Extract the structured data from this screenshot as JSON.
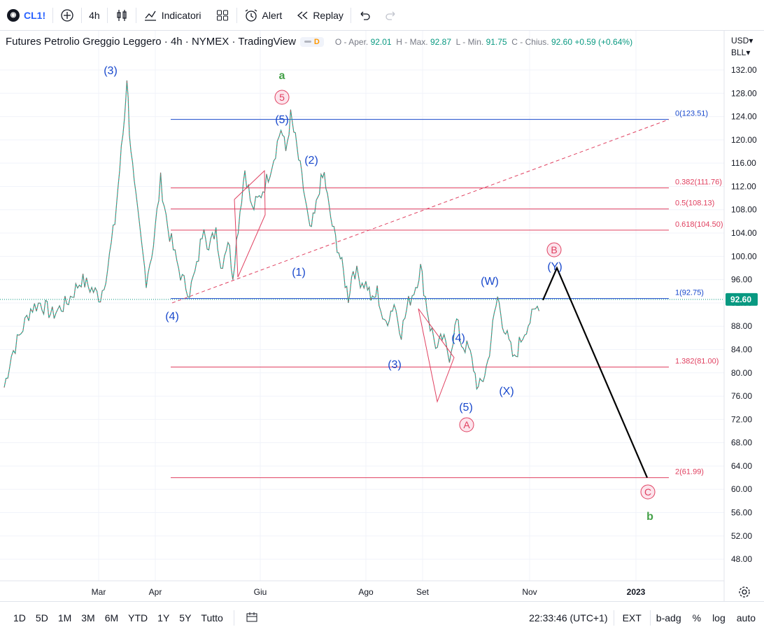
{
  "topbar": {
    "symbol": "CL1!",
    "interval": "4h",
    "indicators_label": "Indicatori",
    "alert_label": "Alert",
    "replay_label": "Replay"
  },
  "legend": {
    "title": "Futures Petrolio Greggio Leggero · 4h · NYMEX · TradingView",
    "d_badge": "D",
    "o_label": "O - Aper.",
    "o_value": "92.01",
    "h_label": "H - Max.",
    "h_value": "92.87",
    "l_label": "L - Min.",
    "l_value": "91.75",
    "c_label": "C - Chius.",
    "c_value": "92.60",
    "change": "+0.59 (+0.64%)"
  },
  "price_scale": {
    "currency": "USD",
    "unit": "BLL",
    "last_price": "92.60"
  },
  "chart_data": {
    "type": "line",
    "ylim": [
      44,
      136
    ],
    "y_ticks": [
      "132.00",
      "128.00",
      "124.00",
      "120.00",
      "116.00",
      "112.00",
      "108.00",
      "104.00",
      "100.00",
      "96.00",
      "92.00",
      "88.00",
      "84.00",
      "80.00",
      "76.00",
      "72.00",
      "68.00",
      "64.00",
      "60.00",
      "56.00",
      "52.00",
      "48.00"
    ],
    "x_ticks": [
      "Mar",
      "Apr",
      "Giu",
      "Ago",
      "Set",
      "Nov",
      "2023"
    ],
    "series": [
      {
        "values": [
          [
            0,
            77.5
          ],
          [
            6,
            83
          ],
          [
            14,
            87
          ],
          [
            22,
            91
          ],
          [
            30,
            92
          ],
          [
            40,
            90
          ],
          [
            52,
            92
          ],
          [
            64,
            96
          ],
          [
            80,
            93
          ],
          [
            86,
            98
          ],
          [
            92,
            106
          ],
          [
            96,
            115
          ],
          [
            100,
            124
          ],
          [
            102,
            131
          ],
          [
            104,
            122
          ],
          [
            108,
            112
          ],
          [
            114,
            102
          ],
          [
            118,
            96
          ],
          [
            124,
            102
          ],
          [
            130,
            113
          ],
          [
            136,
            105
          ],
          [
            142,
            100
          ],
          [
            148,
            96
          ],
          [
            154,
            94
          ],
          [
            160,
            98
          ],
          [
            166,
            106
          ],
          [
            170,
            101
          ],
          [
            176,
            105
          ],
          [
            180,
            98
          ],
          [
            186,
            103
          ],
          [
            190,
            97
          ],
          [
            196,
            108
          ],
          [
            200,
            115
          ],
          [
            206,
            108
          ],
          [
            212,
            110
          ],
          [
            218,
            113
          ],
          [
            224,
            117
          ],
          [
            230,
            122
          ],
          [
            234,
            118
          ],
          [
            238,
            124
          ],
          [
            242,
            120
          ],
          [
            246,
            115
          ],
          [
            250,
            110
          ],
          [
            254,
            104
          ],
          [
            258,
            107
          ],
          [
            262,
            112
          ],
          [
            266,
            114
          ],
          [
            270,
            108
          ],
          [
            274,
            104
          ],
          [
            278,
            101
          ],
          [
            282,
            97
          ],
          [
            286,
            93
          ],
          [
            290,
            98
          ],
          [
            296,
            96
          ],
          [
            302,
            95
          ],
          [
            306,
            92
          ],
          [
            310,
            94
          ],
          [
            316,
            88
          ],
          [
            320,
            90
          ],
          [
            324,
            92
          ],
          [
            330,
            87
          ],
          [
            336,
            92
          ],
          [
            342,
            95
          ],
          [
            346,
            98
          ],
          [
            350,
            93
          ],
          [
            354,
            88
          ],
          [
            360,
            84
          ],
          [
            364,
            86
          ],
          [
            370,
            83
          ],
          [
            376,
            89
          ],
          [
            380,
            85
          ],
          [
            386,
            84
          ],
          [
            390,
            81
          ],
          [
            394,
            77
          ],
          [
            398,
            79
          ],
          [
            402,
            82
          ],
          [
            406,
            88
          ],
          [
            410,
            93
          ],
          [
            414,
            89
          ],
          [
            418,
            86
          ],
          [
            424,
            82
          ],
          [
            428,
            85
          ],
          [
            434,
            88
          ],
          [
            440,
            90
          ],
          [
            446,
            92.6
          ]
        ]
      }
    ],
    "wave_labels": [
      "(3)",
      "a",
      "5",
      "(5)",
      "(2)",
      "(1)",
      "(4)",
      "(W)",
      "(4)",
      "(3)",
      "(5)",
      "A",
      "(X)",
      "B",
      "(Y)",
      "C",
      "b"
    ],
    "fib_levels": [
      {
        "label": "0(123.51)",
        "value": 123.51
      },
      {
        "label": "0.382(111.76)",
        "value": 111.76
      },
      {
        "label": "0.5(108.13)",
        "value": 108.13
      },
      {
        "label": "0.618(104.50)",
        "value": 104.5
      },
      {
        "label": "1(92.75)",
        "value": 92.75
      },
      {
        "label": "1.382(81.00)",
        "value": 81.0
      },
      {
        "label": "2(61.99)",
        "value": 61.99
      }
    ],
    "projection": [
      [
        776,
        92.5
      ],
      [
        796,
        98
      ],
      [
        925,
        62
      ]
    ]
  },
  "bottombar": {
    "ranges": [
      "1D",
      "5D",
      "1M",
      "3M",
      "6M",
      "YTD",
      "1Y",
      "5Y",
      "Tutto"
    ],
    "time": "22:33:46 (UTC+1)",
    "ext": "EXT",
    "adj": "b-adg",
    "pct": "%",
    "log": "log",
    "auto": "auto"
  }
}
